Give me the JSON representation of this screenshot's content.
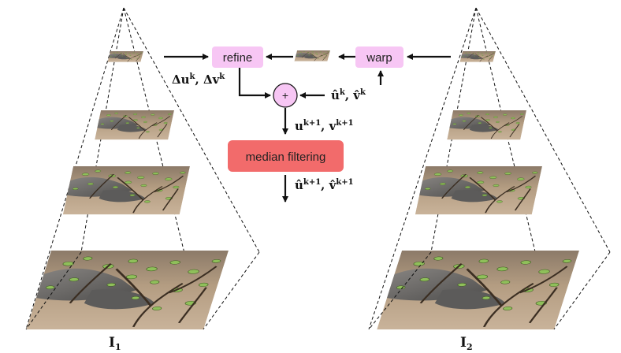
{
  "boxes": {
    "refine": "refine",
    "warp": "warp",
    "plus": "+",
    "median": "median filtering"
  },
  "labels": {
    "delta_left": "Δu",
    "delta_left_sup": "k",
    "delta_right": "Δv",
    "delta_right_sup": "k",
    "delta_sep": ", ",
    "hat_u": "û",
    "hat_u_sup": "k",
    "hat_v": "v̂",
    "hat_v_sup": "k",
    "hat_sep": ", ",
    "u_next": "u",
    "u_next_sup": "k+1",
    "v_next": "v",
    "v_next_sup": "k+1",
    "next_sep": ", ",
    "hat_u_next": "û",
    "hat_u_next_sup": "k+1",
    "hat_v_next": "v̂",
    "hat_v_next_sup": "k+1",
    "hatnext_sep": ", "
  },
  "images": {
    "left": "I",
    "left_sub": "1",
    "right": "I",
    "right_sub": "2"
  },
  "colors": {
    "box_pink": "#f7c6f4",
    "box_red": "#f26b6b",
    "plus_fill": "#f7c6f4",
    "ground": "#b89a7a",
    "rock": "#6d6c6c",
    "foliage": "#8fbf5a",
    "branch": "#4a3a2a"
  }
}
